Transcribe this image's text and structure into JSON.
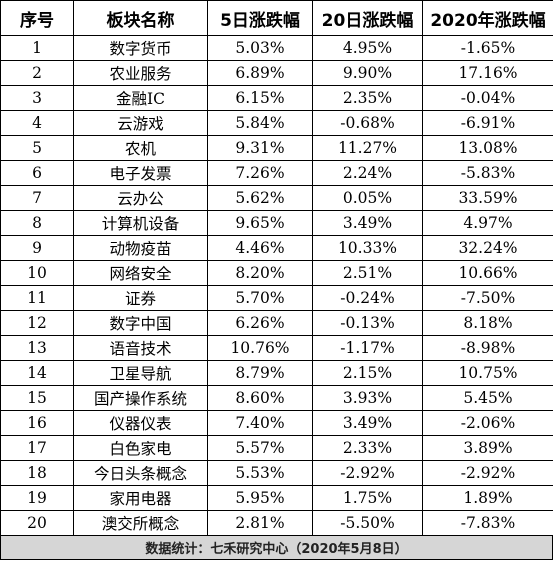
{
  "table": {
    "headers": [
      "序号",
      "板块名称",
      "5日涨跌幅",
      "20日涨跌幅",
      "2020年涨跌幅"
    ],
    "rows": [
      [
        "1",
        "数字货币",
        "5.03%",
        "4.95%",
        "-1.65%"
      ],
      [
        "2",
        "农业服务",
        "6.89%",
        "9.90%",
        "17.16%"
      ],
      [
        "3",
        "金融IC",
        "6.15%",
        "2.35%",
        "-0.04%"
      ],
      [
        "4",
        "云游戏",
        "5.84%",
        "-0.68%",
        "-6.91%"
      ],
      [
        "5",
        "农机",
        "9.31%",
        "11.27%",
        "13.08%"
      ],
      [
        "6",
        "电子发票",
        "7.26%",
        "2.24%",
        "-5.83%"
      ],
      [
        "7",
        "云办公",
        "5.62%",
        "0.05%",
        "33.59%"
      ],
      [
        "8",
        "计算机设备",
        "9.65%",
        "3.49%",
        "4.97%"
      ],
      [
        "9",
        "动物疫苗",
        "4.46%",
        "10.33%",
        "32.24%"
      ],
      [
        "10",
        "网络安全",
        "8.20%",
        "2.51%",
        "10.66%"
      ],
      [
        "11",
        "证券",
        "5.70%",
        "-0.24%",
        "-7.50%"
      ],
      [
        "12",
        "数字中国",
        "6.26%",
        "-0.13%",
        "8.18%"
      ],
      [
        "13",
        "语音技术",
        "10.76%",
        "-1.17%",
        "-8.98%"
      ],
      [
        "14",
        "卫星导航",
        "8.79%",
        "2.15%",
        "10.75%"
      ],
      [
        "15",
        "国产操作系统",
        "8.60%",
        "3.93%",
        "5.45%"
      ],
      [
        "16",
        "仪器仪表",
        "7.40%",
        "3.49%",
        "-2.06%"
      ],
      [
        "17",
        "白色家电",
        "5.57%",
        "2.33%",
        "3.89%"
      ],
      [
        "18",
        "今日头条概念",
        "5.53%",
        "-2.92%",
        "-2.92%"
      ],
      [
        "19",
        "家用电器",
        "5.95%",
        "1.75%",
        "1.89%"
      ],
      [
        "20",
        "澳交所概念",
        "2.81%",
        "-5.50%",
        "-7.83%"
      ]
    ]
  },
  "footer": {
    "text": "数据统计：七禾研究中心（2020年5月8日）"
  }
}
